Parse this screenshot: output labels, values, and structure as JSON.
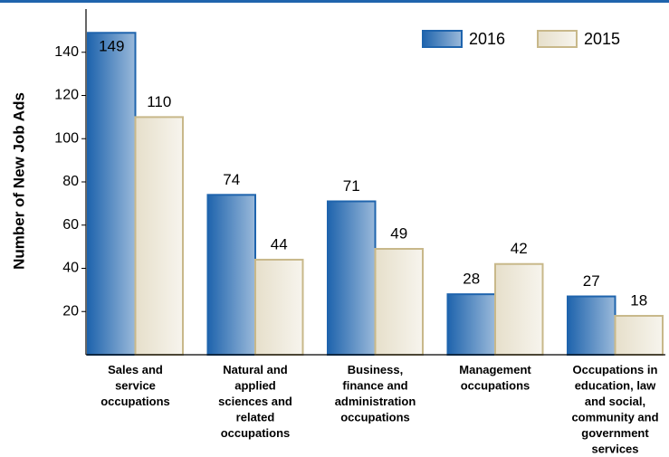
{
  "chart_data": {
    "type": "bar",
    "y_label": "Number of New Job Ads",
    "categories": [
      "Sales and service occupations",
      "Natural and applied sciences and related occupations",
      "Business, finance and administration occupations",
      "Management occupations",
      "Occupations in education, law and social, community and government services"
    ],
    "series": [
      {
        "name": "2016",
        "color": "#1f64ad",
        "values": [
          149,
          74,
          71,
          28,
          27
        ]
      },
      {
        "name": "2015",
        "color": "#c8b88a",
        "values": [
          110,
          44,
          49,
          42,
          18
        ]
      }
    ],
    "ylim": [
      0,
      160
    ],
    "yticks": [
      20,
      40,
      60,
      80,
      100,
      120,
      140
    ],
    "legend": "top-right",
    "grid": false
  }
}
